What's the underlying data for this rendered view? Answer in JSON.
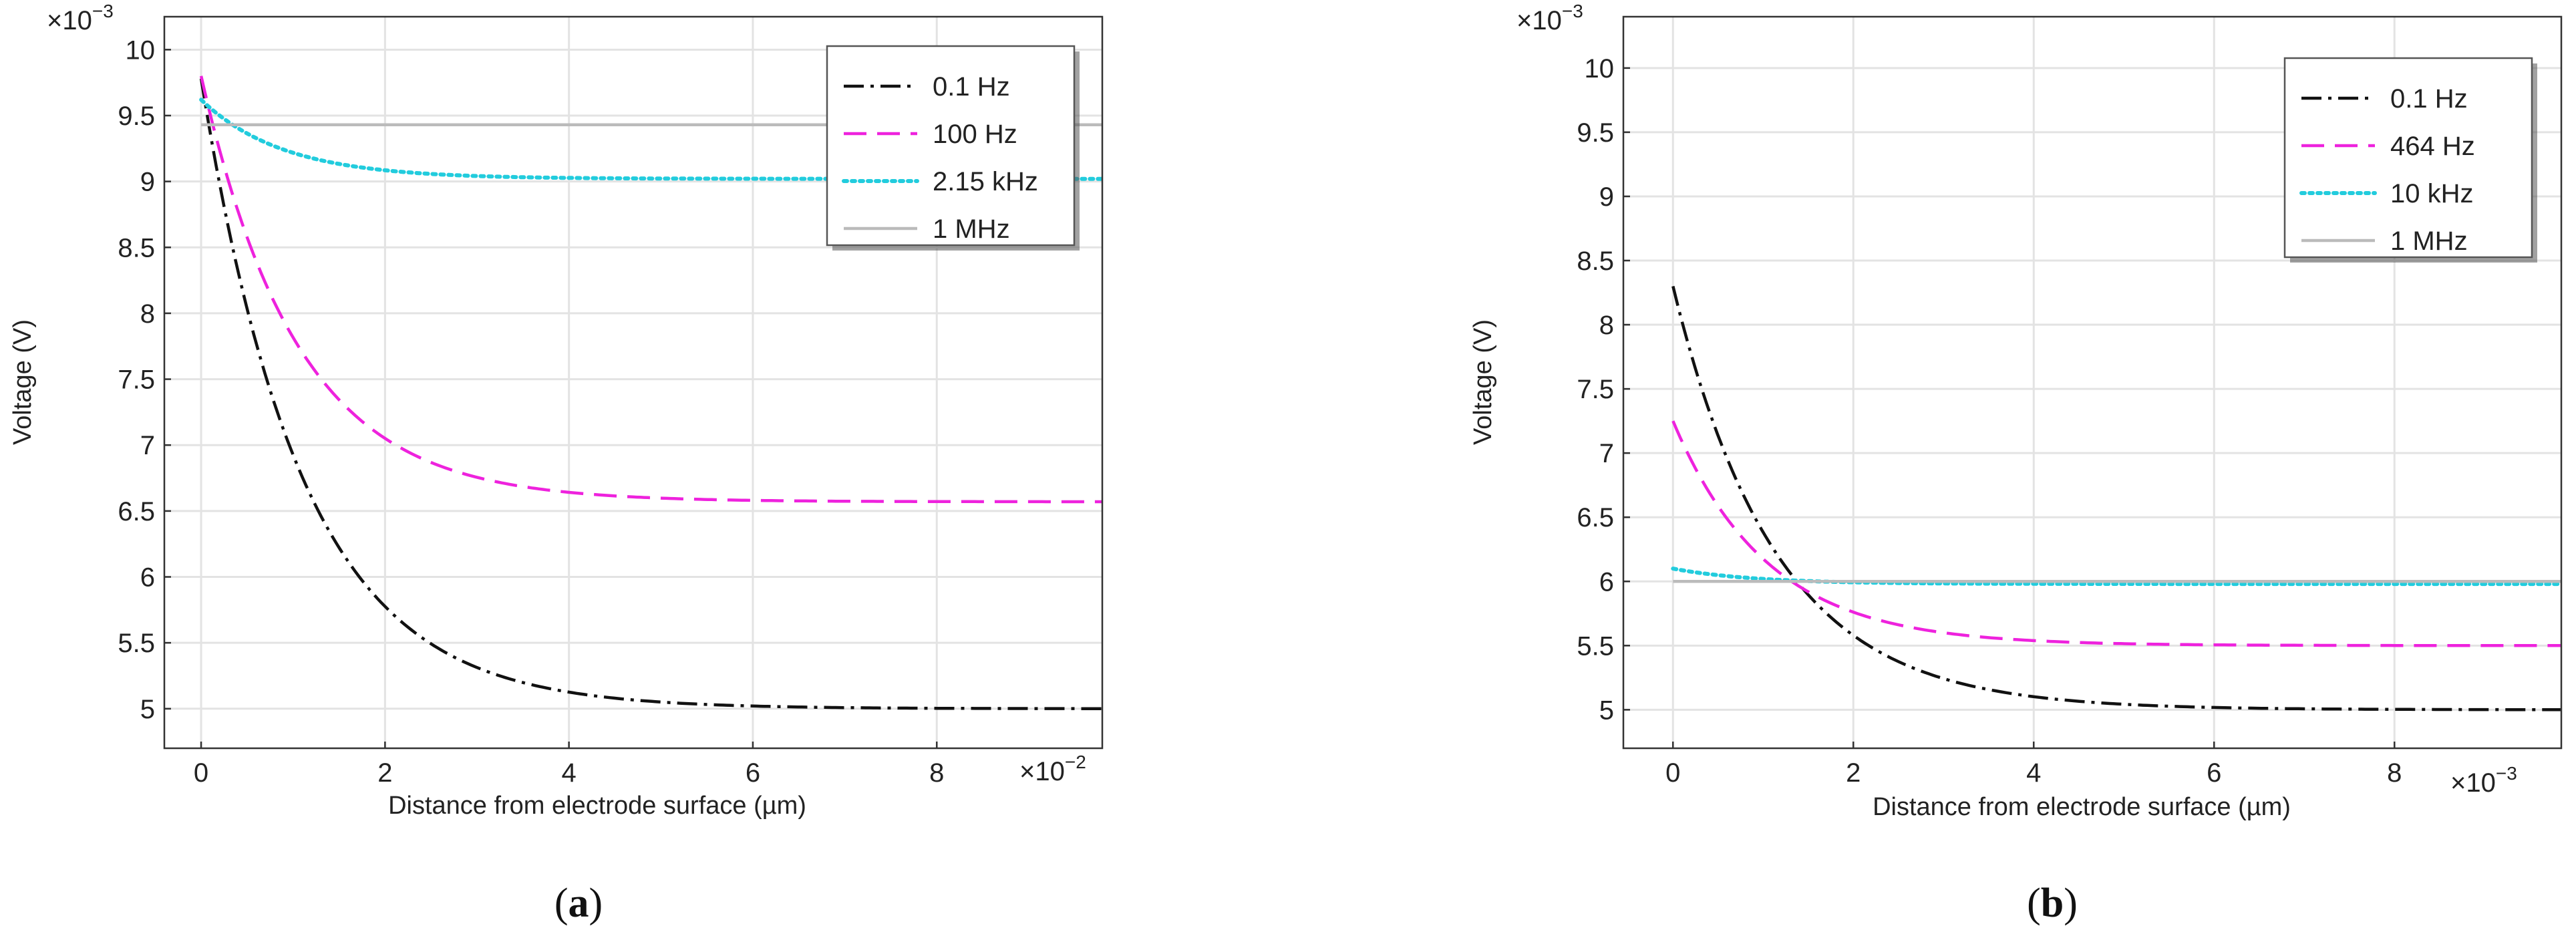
{
  "chart_data": [
    {
      "type": "line",
      "panel_label": "a",
      "title": "",
      "xlabel": "Distance from electrode surface (µm)",
      "ylabel": "Voltage (V)",
      "x_multiplier": "×10",
      "x_multiplier_exp": "−2",
      "y_multiplier": "×10",
      "y_multiplier_exp": "−3",
      "xlim": [
        -0.4,
        9.8
      ],
      "ylim": [
        4.7,
        10.25
      ],
      "xticks": [
        0,
        2,
        4,
        6,
        8
      ],
      "xtick_labels": [
        "0",
        "2",
        "4",
        "6",
        "8"
      ],
      "yticks": [
        5,
        5.5,
        6,
        6.5,
        7,
        7.5,
        8,
        8.5,
        9,
        9.5,
        10
      ],
      "ytick_labels": [
        "5",
        "5.5",
        "6",
        "6.5",
        "7",
        "7.5",
        "8",
        "8.5",
        "9",
        "9.5",
        "10"
      ],
      "grid": true,
      "legend_position": "top-right",
      "series": [
        {
          "name": "0.1 Hz",
          "color": "#111111",
          "style": "dashdot",
          "model": {
            "y0": 9.78,
            "yinf": 5.0,
            "tau": 1.1
          },
          "x_start": 0,
          "x_end": 9.8
        },
        {
          "name": "100 Hz",
          "color": "#ee22dd",
          "style": "dashed",
          "model": {
            "y0": 9.8,
            "yinf": 6.57,
            "tau": 1.05
          },
          "x_start": 0,
          "x_end": 9.8
        },
        {
          "name": "2.15 kHz",
          "color": "#22ccdd",
          "style": "dotted",
          "model": {
            "y0": 9.62,
            "yinf": 9.02,
            "tau": 0.9
          },
          "x_start": 0,
          "x_end": 9.8
        },
        {
          "name": "1 MHz",
          "color": "#bbbbbb",
          "style": "solid",
          "model": {
            "y0": 9.43,
            "yinf": 9.43,
            "tau": 1.0
          },
          "x_start": 0,
          "x_end": 9.8
        }
      ]
    },
    {
      "type": "line",
      "panel_label": "b",
      "title": "",
      "xlabel": "Distance from electrode surface (µm)",
      "ylabel": "Voltage (V)",
      "x_multiplier": "×10",
      "x_multiplier_exp": "−3",
      "y_multiplier": "×10",
      "y_multiplier_exp": "−3",
      "xlim": [
        -0.55,
        9.85
      ],
      "ylim": [
        4.7,
        10.4
      ],
      "xticks": [
        0,
        2,
        4,
        6,
        8
      ],
      "xtick_labels": [
        "0",
        "2",
        "4",
        "6",
        "8"
      ],
      "yticks": [
        5,
        5.5,
        6,
        6.5,
        7,
        7.5,
        8,
        8.5,
        9,
        9.5,
        10
      ],
      "ytick_labels": [
        "5",
        "5.5",
        "6",
        "6.5",
        "7",
        "7.5",
        "8",
        "8.5",
        "9",
        "9.5",
        "10"
      ],
      "grid": true,
      "legend_position": "top-right",
      "series": [
        {
          "name": "0.1 Hz",
          "color": "#111111",
          "style": "dashdot",
          "model": {
            "y0": 8.3,
            "yinf": 5.0,
            "tau": 1.15
          },
          "x_start": 0,
          "x_end": 9.85
        },
        {
          "name": "464 Hz",
          "color": "#ee22dd",
          "style": "dashed",
          "model": {
            "y0": 7.25,
            "yinf": 5.5,
            "tau": 1.05
          },
          "x_start": 0,
          "x_end": 9.85
        },
        {
          "name": "10 kHz",
          "color": "#22ccdd",
          "style": "dotted",
          "model": {
            "y0": 6.1,
            "yinf": 5.98,
            "tau": 0.9
          },
          "x_start": 0,
          "x_end": 9.85
        },
        {
          "name": "1 MHz",
          "color": "#bbbbbb",
          "style": "solid",
          "model": {
            "y0": 6.0,
            "yinf": 6.0,
            "tau": 1.0
          },
          "x_start": 0,
          "x_end": 9.85
        }
      ]
    }
  ]
}
